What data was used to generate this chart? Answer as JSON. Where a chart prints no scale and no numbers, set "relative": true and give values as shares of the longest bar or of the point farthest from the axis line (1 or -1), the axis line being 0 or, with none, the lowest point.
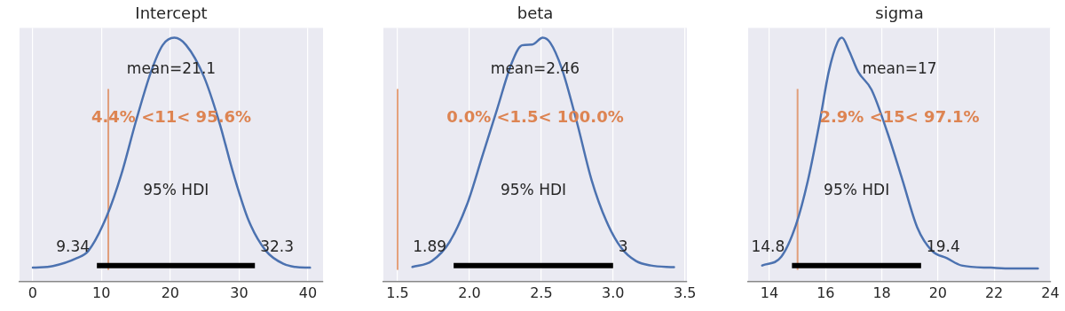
{
  "chart_data": [
    {
      "type": "line",
      "title": "Intercept",
      "relative": true,
      "grid": "x",
      "legend": false,
      "xlim": [
        -1.9,
        42.2
      ],
      "xticks": [
        0,
        10,
        20,
        30,
        40
      ],
      "series": [
        {
          "color": "#4c72b0",
          "x": [
            0.04,
            2.97,
            6.4,
            8.1,
            10.8,
            12.9,
            15.0,
            17.2,
            18.9,
            20.6,
            22.3,
            24.9,
            27.1,
            29.2,
            31.4,
            33.9,
            36.5,
            38.2,
            40.3
          ],
          "values": [
            0.057,
            0.064,
            0.096,
            0.126,
            0.27,
            0.44,
            0.656,
            0.86,
            0.97,
            1.0,
            0.97,
            0.84,
            0.656,
            0.44,
            0.25,
            0.126,
            0.072,
            0.06,
            0.057
          ]
        },
        {
          "color": "#000000",
          "x": [
            9.34,
            32.3
          ],
          "values": [
            0.066,
            0.066
          ]
        }
      ],
      "ref_lines": [
        {
          "axis": "x",
          "value": 11,
          "label": "4.4% <11< 95.6%",
          "color": "#dd8452"
        }
      ],
      "annotations": [
        "mean=21.1",
        "95% HDI",
        "9.34",
        "32.3"
      ]
    },
    {
      "type": "line",
      "title": "beta",
      "relative": true,
      "grid": "x",
      "legend": false,
      "xlim": [
        1.401,
        3.514
      ],
      "xticks": [
        1.5,
        {
          "value": 2,
          "label": "2.0"
        },
        2.5,
        {
          "value": 3,
          "label": "3.0"
        },
        3.5
      ],
      "series": [
        {
          "color": "#4c72b0",
          "x": [
            1.603,
            1.737,
            1.861,
            1.985,
            2.088,
            2.191,
            2.294,
            2.366,
            2.438,
            2.51,
            2.562,
            2.644,
            2.747,
            2.851,
            2.954,
            3.057,
            3.16,
            3.263,
            3.424
          ],
          "values": [
            0.06,
            0.084,
            0.162,
            0.319,
            0.511,
            0.704,
            0.896,
            0.969,
            0.972,
            1.0,
            0.98,
            0.872,
            0.656,
            0.415,
            0.247,
            0.138,
            0.084,
            0.066,
            0.059
          ]
        },
        {
          "color": "#000000",
          "x": [
            1.89,
            3
          ],
          "values": [
            0.066,
            0.066
          ]
        }
      ],
      "ref_lines": [
        {
          "axis": "x",
          "value": 1.5,
          "label": "0.0% <1.5< 100.0%",
          "color": "#dd8452"
        }
      ],
      "annotations": [
        "mean=2.46",
        "95% HDI",
        "1.89",
        "3"
      ]
    },
    {
      "type": "line",
      "title": "sigma",
      "relative": true,
      "grid": "x",
      "legend": false,
      "xlim": [
        13.24,
        24.02
      ],
      "xticks": [
        14,
        16,
        18,
        20,
        22,
        24
      ],
      "series": [
        {
          "color": "#4c72b0",
          "x": [
            13.74,
            14.42,
            14.95,
            15.37,
            15.79,
            16.11,
            16.42,
            16.58,
            16.84,
            17.16,
            17.63,
            18.21,
            18.74,
            19.26,
            19.79,
            20.32,
            20.84,
            21.89,
            22.63,
            23.56
          ],
          "values": [
            0.066,
            0.102,
            0.235,
            0.415,
            0.656,
            0.86,
            0.98,
            1.0,
            0.945,
            0.86,
            0.788,
            0.608,
            0.415,
            0.223,
            0.126,
            0.096,
            0.066,
            0.057,
            0.054,
            0.054
          ]
        },
        {
          "color": "#000000",
          "x": [
            14.8,
            19.4
          ],
          "values": [
            0.066,
            0.066
          ]
        }
      ],
      "ref_lines": [
        {
          "axis": "x",
          "value": 15,
          "label": "2.9% <15< 97.1%",
          "color": "#dd8452"
        }
      ],
      "annotations": [
        "mean=17",
        "95% HDI",
        "14.8",
        "19.4"
      ]
    }
  ]
}
